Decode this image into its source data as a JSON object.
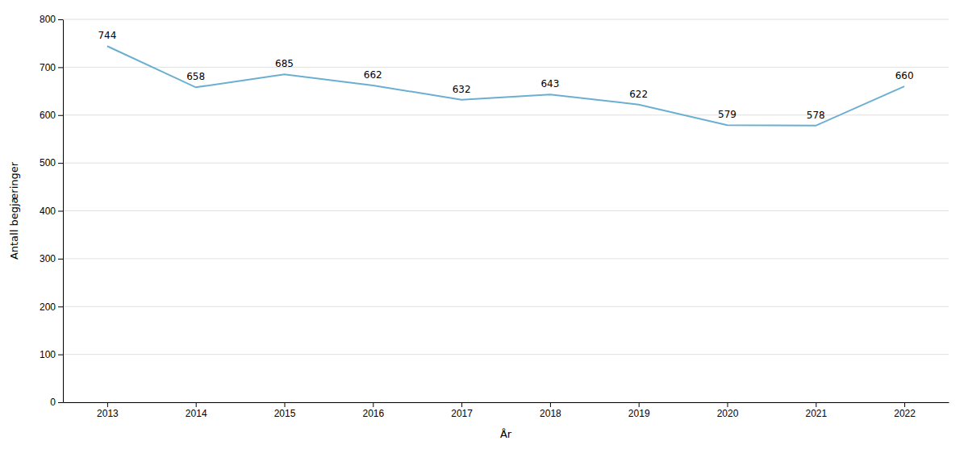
{
  "chart_data": {
    "type": "line",
    "x": [
      2013,
      2014,
      2015,
      2016,
      2017,
      2018,
      2019,
      2020,
      2021,
      2022
    ],
    "values": [
      744,
      658,
      685,
      662,
      632,
      643,
      622,
      579,
      578,
      660
    ],
    "color": "#6aafd2",
    "xlabel": "År",
    "ylabel": "Antall begjæringer",
    "xlim": [
      2012.5,
      2022.5
    ],
    "xticks": [
      2013,
      2014,
      2015,
      2016,
      2017,
      2018,
      2019,
      2020,
      2021,
      2022
    ],
    "ylim": [
      0,
      800
    ],
    "yticks": [
      0,
      100,
      200,
      300,
      400,
      500,
      600,
      700,
      800
    ],
    "grid": true,
    "data_labels": true
  }
}
